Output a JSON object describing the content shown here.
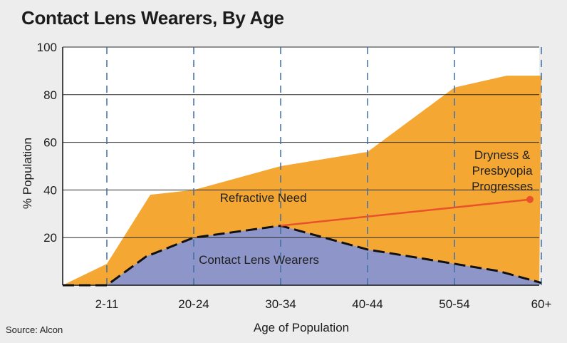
{
  "title": "Contact Lens Wearers, By Age",
  "source": "Source: Alcon",
  "chart_data": {
    "type": "area",
    "title": "Contact Lens Wearers, By Age",
    "xlabel": "Age of Population",
    "ylabel": "% Population",
    "ylim": [
      0,
      100
    ],
    "yticks": [
      20,
      40,
      60,
      80,
      100
    ],
    "categories": [
      "2-11",
      "20-24",
      "30-34",
      "40-44",
      "50-54",
      "60+"
    ],
    "grid": "dashed vertical at categories, solid horizontal at y ticks",
    "series": [
      {
        "name": "Refractive Need",
        "color": "#f5a733",
        "x": [
          0,
          1,
          1.5,
          2,
          3,
          4,
          5,
          5.6,
          6
        ],
        "values": [
          0,
          9,
          38,
          40,
          50,
          56,
          83,
          88,
          88
        ]
      },
      {
        "name": "Contact Lens Wearers",
        "color": "#8d95c9",
        "x": [
          0,
          1,
          1.45,
          2,
          3,
          4,
          5,
          5.5,
          6
        ],
        "values": [
          0,
          0,
          12,
          20,
          25,
          15,
          9,
          6,
          1
        ]
      }
    ],
    "annotations": [
      {
        "text": "Refractive Need",
        "x": 2.8,
        "y": 35
      },
      {
        "text": "Contact Lens Wearers",
        "x": 2.75,
        "y": 9
      },
      {
        "lines": [
          "Dryness &",
          "Presbyopia",
          "Progresses"
        ],
        "x": 5.55,
        "y": 53
      }
    ],
    "trend_arrow": {
      "color": "#e8522a",
      "from": [
        3,
        25
      ],
      "to": [
        6,
        36
      ]
    }
  }
}
